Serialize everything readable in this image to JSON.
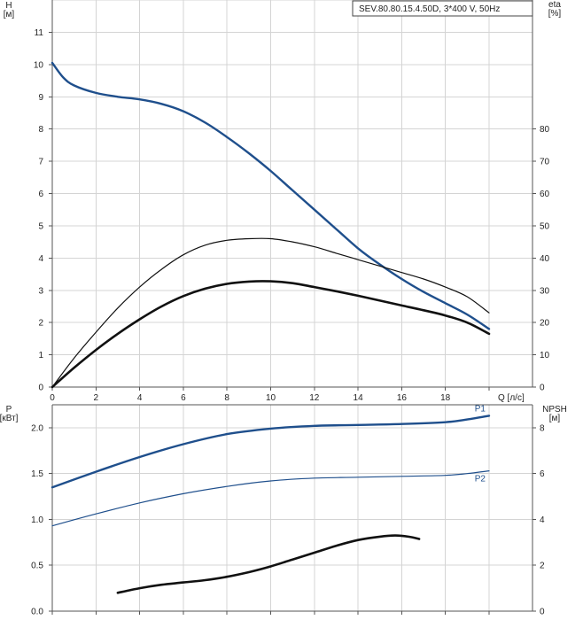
{
  "chart_data": [
    {
      "type": "line",
      "title_box": "SEV.80.80.15.4.50D, 3*400 V, 50Hz",
      "xlabel": "Q [л/с]",
      "xlim": [
        0,
        20
      ],
      "x_ticks": [
        0,
        2,
        4,
        6,
        8,
        10,
        12,
        14,
        16,
        18
      ],
      "ylabel_left": [
        "H",
        "[м]"
      ],
      "ylim_left": [
        0,
        12
      ],
      "y_ticks_left": [
        0,
        1,
        2,
        3,
        4,
        5,
        6,
        7,
        8,
        9,
        10,
        11
      ],
      "ylabel_right": [
        "eta",
        "[%]"
      ],
      "ylim_right": [
        0,
        120
      ],
      "y_ticks_right": [
        0,
        10,
        20,
        30,
        40,
        50,
        60,
        70,
        80
      ],
      "grid": true,
      "series": [
        {
          "axis": "left",
          "color": "#1f4f8c",
          "width": 2.4,
          "x": [
            0,
            0.5,
            1,
            2,
            3,
            4,
            5,
            6,
            7,
            8,
            9,
            10,
            11,
            12,
            13,
            14,
            15,
            16,
            17,
            18,
            19,
            20
          ],
          "y": [
            10.05,
            9.6,
            9.35,
            9.12,
            9.0,
            8.92,
            8.78,
            8.55,
            8.2,
            7.75,
            7.25,
            6.7,
            6.1,
            5.5,
            4.9,
            4.3,
            3.8,
            3.35,
            2.95,
            2.6,
            2.25,
            1.8
          ]
        },
        {
          "axis": "right",
          "color": "#111111",
          "width": 1.2,
          "x": [
            0,
            1,
            2,
            3,
            4,
            5,
            6,
            7,
            8,
            9,
            10,
            11,
            12,
            13,
            14,
            15,
            16,
            17,
            18,
            19,
            20
          ],
          "y": [
            0,
            9,
            17,
            24.5,
            31,
            36.5,
            41,
            44,
            45.5,
            46,
            46,
            45,
            43.5,
            41.5,
            39.5,
            37.5,
            35.5,
            33.5,
            31,
            28,
            23
          ]
        },
        {
          "axis": "left",
          "color": "#111111",
          "width": 2.6,
          "x": [
            0,
            1,
            2,
            3,
            4,
            5,
            6,
            7,
            8,
            9,
            10,
            11,
            12,
            13,
            14,
            15,
            16,
            17,
            18,
            19,
            20
          ],
          "y": [
            0,
            0.6,
            1.15,
            1.65,
            2.1,
            2.5,
            2.82,
            3.05,
            3.2,
            3.27,
            3.28,
            3.22,
            3.1,
            2.97,
            2.83,
            2.68,
            2.53,
            2.38,
            2.22,
            2.0,
            1.65
          ]
        }
      ]
    },
    {
      "type": "line",
      "xlim": [
        0,
        20
      ],
      "ylabel_left": [
        "P",
        "[кВт]"
      ],
      "ylim_left": [
        0,
        2.25
      ],
      "y_ticks_left": [
        "0.0",
        "0.5",
        "1.0",
        "1.5",
        "2.0"
      ],
      "ylabel_right": [
        "NPSH",
        "[м]"
      ],
      "ylim_right": [
        0,
        9
      ],
      "y_ticks_right": [
        0,
        2,
        4,
        6,
        8
      ],
      "grid": true,
      "series": [
        {
          "name": "P1",
          "axis": "left",
          "color": "#1f4f8c",
          "width": 2.4,
          "x": [
            0,
            2,
            4,
            6,
            8,
            10,
            12,
            14,
            16,
            18,
            19,
            20
          ],
          "y": [
            1.35,
            1.52,
            1.68,
            1.82,
            1.93,
            1.99,
            2.02,
            2.03,
            2.04,
            2.06,
            2.09,
            2.13
          ]
        },
        {
          "name": "P2",
          "axis": "left",
          "color": "#1f4f8c",
          "width": 1.2,
          "x": [
            0,
            2,
            4,
            6,
            8,
            10,
            12,
            14,
            16,
            18,
            19,
            20
          ],
          "y": [
            0.93,
            1.06,
            1.18,
            1.28,
            1.36,
            1.42,
            1.45,
            1.46,
            1.47,
            1.48,
            1.5,
            1.53
          ]
        },
        {
          "name": "NPSH",
          "axis": "right",
          "color": "#111111",
          "width": 2.6,
          "x": [
            3,
            4,
            5,
            6,
            7,
            8,
            9,
            10,
            11,
            12,
            13,
            14,
            15,
            15.7,
            16.3,
            16.8
          ],
          "y": [
            0.8,
            1.0,
            1.15,
            1.25,
            1.35,
            1.5,
            1.7,
            1.95,
            2.25,
            2.55,
            2.85,
            3.1,
            3.25,
            3.3,
            3.25,
            3.15
          ]
        }
      ]
    }
  ]
}
